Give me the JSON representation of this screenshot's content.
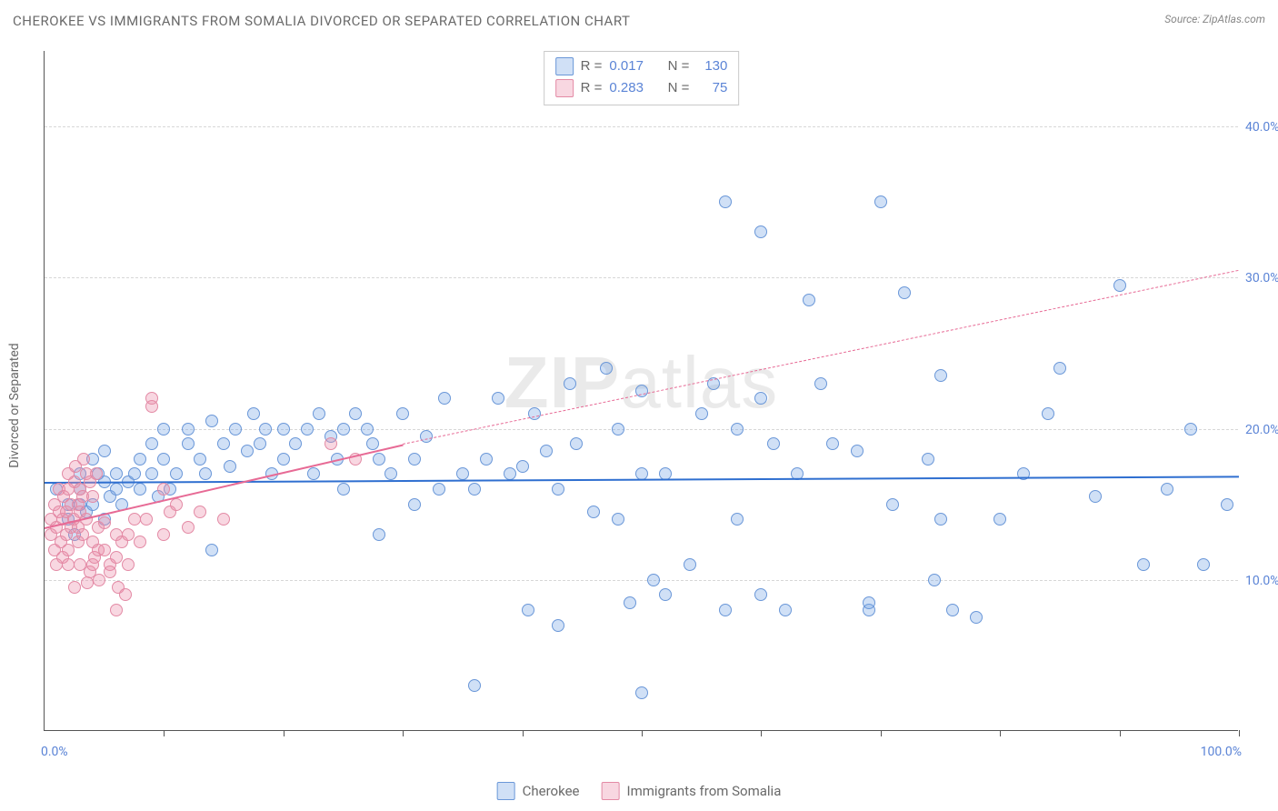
{
  "title": "CHEROKEE VS IMMIGRANTS FROM SOMALIA DIVORCED OR SEPARATED CORRELATION CHART",
  "source_label": "Source:",
  "source_name": "ZipAtlas.com",
  "watermark": "ZIPatlas",
  "ylabel": "Divorced or Separated",
  "chart": {
    "type": "scatter",
    "xlim": [
      0,
      100
    ],
    "ylim": [
      0,
      45
    ],
    "x_corner_left": "0.0%",
    "x_corner_right": "100.0%",
    "xticks": [
      10,
      20,
      30,
      40,
      50,
      60,
      70,
      80,
      90,
      100
    ],
    "yticks": [
      {
        "v": 10,
        "label": "10.0%"
      },
      {
        "v": 20,
        "label": "20.0%"
      },
      {
        "v": 30,
        "label": "30.0%"
      },
      {
        "v": 40,
        "label": "40.0%"
      }
    ],
    "series": [
      {
        "key": "cherokee",
        "name": "Cherokee",
        "marker_fill": "rgba(120,165,228,0.35)",
        "marker_stroke": "#6a97d8",
        "trend_color": "#2f6fd0",
        "r": "0.017",
        "n": "130",
        "trend": {
          "x1": 0,
          "y1": 16.5,
          "x2": 100,
          "y2": 16.9,
          "dashed": false
        },
        "points": [
          [
            1,
            16
          ],
          [
            2,
            15
          ],
          [
            2,
            14
          ],
          [
            2.5,
            13
          ],
          [
            3,
            16
          ],
          [
            3,
            15
          ],
          [
            3.5,
            14.5
          ],
          [
            3,
            17
          ],
          [
            4,
            18
          ],
          [
            4,
            15
          ],
          [
            4.5,
            17
          ],
          [
            5,
            16.5
          ],
          [
            5,
            14
          ],
          [
            5.5,
            15.5
          ],
          [
            5,
            18.5
          ],
          [
            6,
            17
          ],
          [
            6,
            16
          ],
          [
            6.5,
            15
          ],
          [
            7,
            16.5
          ],
          [
            7.5,
            17
          ],
          [
            8,
            18
          ],
          [
            8,
            16
          ],
          [
            9,
            19
          ],
          [
            9,
            17
          ],
          [
            9.5,
            15.5
          ],
          [
            10,
            18
          ],
          [
            10,
            20
          ],
          [
            10.5,
            16
          ],
          [
            11,
            17
          ],
          [
            12,
            19
          ],
          [
            12,
            20
          ],
          [
            13,
            18
          ],
          [
            13.5,
            17
          ],
          [
            14,
            20.5
          ],
          [
            14,
            12
          ],
          [
            15,
            19
          ],
          [
            15.5,
            17.5
          ],
          [
            16,
            20
          ],
          [
            17,
            18.5
          ],
          [
            17.5,
            21
          ],
          [
            18,
            19
          ],
          [
            18.5,
            20
          ],
          [
            19,
            17
          ],
          [
            20,
            20
          ],
          [
            20,
            18
          ],
          [
            21,
            19
          ],
          [
            22,
            20
          ],
          [
            22.5,
            17
          ],
          [
            23,
            21
          ],
          [
            24,
            19.5
          ],
          [
            24.5,
            18
          ],
          [
            25,
            20
          ],
          [
            25,
            16
          ],
          [
            26,
            21
          ],
          [
            27,
            20
          ],
          [
            27.5,
            19
          ],
          [
            28,
            13
          ],
          [
            28,
            18
          ],
          [
            29,
            17
          ],
          [
            30,
            21
          ],
          [
            31,
            18
          ],
          [
            31,
            15
          ],
          [
            32,
            19.5
          ],
          [
            33,
            16
          ],
          [
            33.5,
            22
          ],
          [
            35,
            17
          ],
          [
            36,
            16
          ],
          [
            36,
            3
          ],
          [
            37,
            18
          ],
          [
            38,
            22
          ],
          [
            39,
            17
          ],
          [
            40,
            17.5
          ],
          [
            40.5,
            8
          ],
          [
            41,
            21
          ],
          [
            42,
            18.5
          ],
          [
            43,
            16
          ],
          [
            43,
            7
          ],
          [
            44,
            23
          ],
          [
            44.5,
            19
          ],
          [
            46,
            14.5
          ],
          [
            47,
            24
          ],
          [
            48,
            20
          ],
          [
            48,
            14
          ],
          [
            49,
            8.5
          ],
          [
            50,
            22.5
          ],
          [
            50,
            17
          ],
          [
            50,
            2.5
          ],
          [
            51,
            10
          ],
          [
            52,
            17
          ],
          [
            52,
            9
          ],
          [
            54,
            11
          ],
          [
            55,
            21
          ],
          [
            56,
            23
          ],
          [
            57,
            35
          ],
          [
            57,
            8
          ],
          [
            58,
            20
          ],
          [
            58,
            14
          ],
          [
            60,
            9
          ],
          [
            60,
            22
          ],
          [
            60,
            33
          ],
          [
            61,
            19
          ],
          [
            62,
            8
          ],
          [
            63,
            17
          ],
          [
            64,
            28.5
          ],
          [
            65,
            23
          ],
          [
            66,
            19
          ],
          [
            68,
            18.5
          ],
          [
            69,
            8
          ],
          [
            69,
            8.5
          ],
          [
            70,
            35
          ],
          [
            71,
            15
          ],
          [
            72,
            29
          ],
          [
            74,
            18
          ],
          [
            74.5,
            10
          ],
          [
            75,
            23.5
          ],
          [
            75,
            14
          ],
          [
            76,
            8
          ],
          [
            78,
            7.5
          ],
          [
            80,
            14
          ],
          [
            82,
            17
          ],
          [
            84,
            21
          ],
          [
            85,
            24
          ],
          [
            88,
            15.5
          ],
          [
            90,
            29.5
          ],
          [
            92,
            11
          ],
          [
            94,
            16
          ],
          [
            96,
            20
          ],
          [
            97,
            11
          ],
          [
            99,
            15
          ]
        ]
      },
      {
        "key": "somalia",
        "name": "Immigrants from Somalia",
        "marker_fill": "rgba(236,140,168,0.35)",
        "marker_stroke": "#e38aa5",
        "trend_color": "#e76a95",
        "r": "0.283",
        "n": "75",
        "trend": {
          "x1": 0,
          "y1": 13.5,
          "x2": 30,
          "y2": 19,
          "dashed": false
        },
        "trend_ext": {
          "x1": 30,
          "y1": 19,
          "x2": 100,
          "y2": 30.5,
          "dashed": true
        },
        "points": [
          [
            0.5,
            13
          ],
          [
            0.5,
            14
          ],
          [
            0.8,
            12
          ],
          [
            0.8,
            15
          ],
          [
            1,
            13.5
          ],
          [
            1,
            11
          ],
          [
            1.2,
            14.5
          ],
          [
            1.2,
            16
          ],
          [
            1.4,
            12.5
          ],
          [
            1.5,
            14
          ],
          [
            1.5,
            11.5
          ],
          [
            1.6,
            15.5
          ],
          [
            1.8,
            14.5
          ],
          [
            1.8,
            13
          ],
          [
            2,
            17
          ],
          [
            2,
            16
          ],
          [
            2,
            12
          ],
          [
            2,
            11
          ],
          [
            2.2,
            15
          ],
          [
            2.2,
            13.5
          ],
          [
            2.4,
            14
          ],
          [
            2.5,
            16.5
          ],
          [
            2.5,
            9.5
          ],
          [
            2.6,
            17.5
          ],
          [
            2.8,
            15
          ],
          [
            2.8,
            12.5
          ],
          [
            2.8,
            13.5
          ],
          [
            3,
            14.5
          ],
          [
            3,
            16
          ],
          [
            3,
            11
          ],
          [
            3.2,
            15.5
          ],
          [
            3.2,
            13
          ],
          [
            3.3,
            18
          ],
          [
            3.5,
            14
          ],
          [
            3.5,
            17
          ],
          [
            3.6,
            9.8
          ],
          [
            3.8,
            16.5
          ],
          [
            3.8,
            10.5
          ],
          [
            4,
            15.5
          ],
          [
            4,
            12.5
          ],
          [
            4,
            11
          ],
          [
            4.2,
            11.5
          ],
          [
            4.3,
            17
          ],
          [
            4.5,
            12
          ],
          [
            4.5,
            13.5
          ],
          [
            4.6,
            10
          ],
          [
            5,
            12
          ],
          [
            5,
            13.8
          ],
          [
            5.5,
            11
          ],
          [
            5.5,
            10.5
          ],
          [
            6,
            8
          ],
          [
            6,
            11.5
          ],
          [
            6,
            13
          ],
          [
            6.2,
            9.5
          ],
          [
            6.5,
            12.5
          ],
          [
            6.8,
            9
          ],
          [
            7,
            11
          ],
          [
            7,
            13
          ],
          [
            7.5,
            14
          ],
          [
            8,
            12.5
          ],
          [
            8.5,
            14
          ],
          [
            9,
            21.5
          ],
          [
            9,
            22
          ],
          [
            10,
            16
          ],
          [
            10,
            13
          ],
          [
            10.5,
            14.5
          ],
          [
            11,
            15
          ],
          [
            12,
            13.5
          ],
          [
            13,
            14.5
          ],
          [
            15,
            14
          ],
          [
            24,
            19
          ],
          [
            26,
            18
          ]
        ]
      }
    ]
  },
  "legend_bottom": [
    {
      "key": "cherokee",
      "label": "Cherokee"
    },
    {
      "key": "somalia",
      "label": "Immigrants from Somalia"
    }
  ]
}
